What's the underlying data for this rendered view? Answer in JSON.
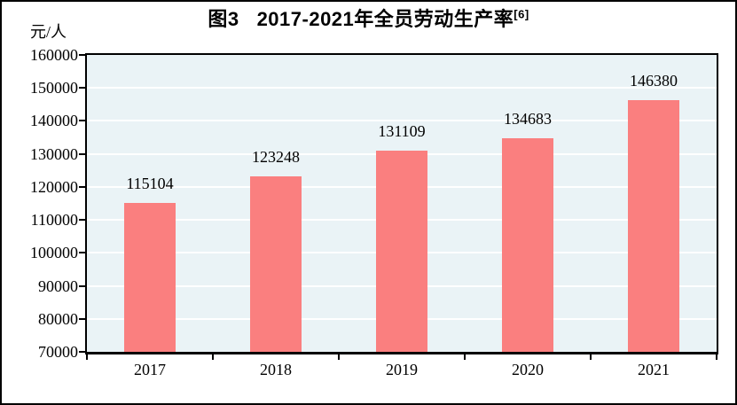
{
  "page": {
    "background": "#ffffff",
    "frame_border_color": "#000000"
  },
  "title": {
    "prefix": "图3",
    "main": "2017-2021年全员劳动生产率",
    "superscript": "[6]"
  },
  "y_axis_unit": "元/人",
  "chart_data": {
    "type": "bar",
    "title": "图3 2017-2021年全员劳动生产率[6]",
    "categories": [
      "2017",
      "2018",
      "2019",
      "2020",
      "2021"
    ],
    "values": [
      115104,
      123248,
      131109,
      134683,
      146380
    ],
    "xlabel": "",
    "ylabel": "元/人",
    "ylim": [
      70000,
      160000
    ],
    "ytick_step": 10000,
    "grid": true,
    "legend": "none",
    "data_labels": true,
    "bar_color": "#FA7F7F",
    "plot_bg_color": "#EAF3F6",
    "gridline_color": "#FFFFFF",
    "axis_color": "#000000",
    "text_color": "#000000"
  }
}
